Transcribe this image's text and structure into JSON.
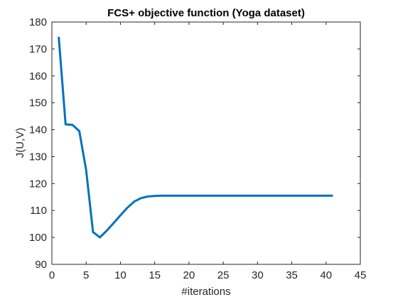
{
  "chart_data": {
    "type": "line",
    "title": "FCS+ objective function (Yoga dataset)",
    "xlabel": "#iterations",
    "ylabel": "J(U,V)",
    "xlim": [
      0,
      45
    ],
    "ylim": [
      90,
      180
    ],
    "xticks": [
      0,
      5,
      10,
      15,
      20,
      25,
      30,
      35,
      40,
      45
    ],
    "yticks": [
      90,
      100,
      110,
      120,
      130,
      140,
      150,
      160,
      170,
      180
    ],
    "grid": false,
    "legend": "none",
    "series": [
      {
        "color": "#0072BD",
        "x": [
          1,
          2,
          3,
          4,
          5,
          6,
          7,
          8,
          9,
          10,
          11,
          12,
          13,
          14,
          15,
          16,
          17,
          18,
          19,
          20,
          21,
          22,
          23,
          24,
          25,
          26,
          27,
          28,
          29,
          30,
          31,
          32,
          33,
          34,
          35,
          36,
          37,
          38,
          39,
          40,
          41
        ],
        "y": [
          174.5,
          142,
          141.8,
          139.5,
          125,
          102,
          100,
          102.5,
          105.3,
          108.2,
          111,
          113.3,
          114.6,
          115.2,
          115.4,
          115.5,
          115.5,
          115.5,
          115.5,
          115.5,
          115.5,
          115.5,
          115.5,
          115.5,
          115.5,
          115.5,
          115.5,
          115.5,
          115.5,
          115.5,
          115.5,
          115.5,
          115.5,
          115.5,
          115.5,
          115.5,
          115.5,
          115.5,
          115.5,
          115.5,
          115.5
        ]
      }
    ]
  }
}
